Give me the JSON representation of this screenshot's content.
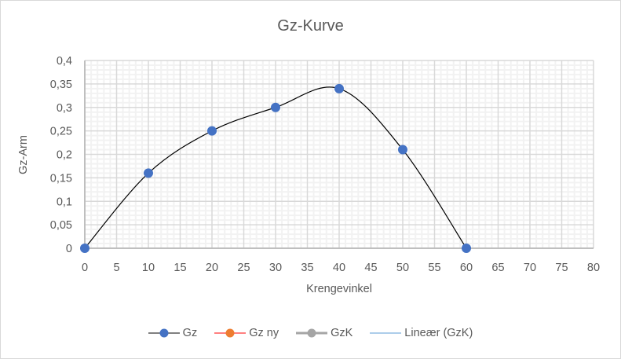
{
  "chart_data": {
    "type": "scatter",
    "title": "Gz-Kurve",
    "xlabel": "Krengevinkel",
    "ylabel": "Gz-Arm",
    "xlim": [
      0,
      80
    ],
    "ylim": [
      0,
      0.4
    ],
    "x_ticks": [
      "0",
      "5",
      "10",
      "15",
      "20",
      "25",
      "30",
      "35",
      "40",
      "45",
      "50",
      "55",
      "60",
      "65",
      "70",
      "75",
      "80"
    ],
    "y_ticks": [
      "0",
      "0,05",
      "0,1",
      "0,15",
      "0,2",
      "0,25",
      "0,3",
      "0,35",
      "0,4"
    ],
    "grid": {
      "major": true,
      "minor": true
    },
    "legend_position": "bottom",
    "series": [
      {
        "name": "Gz",
        "x": [
          0,
          10,
          20,
          30,
          40,
          50,
          60
        ],
        "y": [
          0,
          0.16,
          0.25,
          0.3,
          0.34,
          0.21,
          0
        ],
        "marker_color": "#4472c4",
        "line_color": "#000000",
        "smooth": true
      },
      {
        "name": "Gz ny",
        "x": [],
        "y": [],
        "marker_color": "#ed7d31",
        "line_color": "#ff0000"
      },
      {
        "name": "GzK",
        "x": [],
        "y": [],
        "marker_color": "#a5a5a5",
        "line_color": "#a5a5a5"
      },
      {
        "name": "Lineær (GzK)",
        "x": [],
        "y": [],
        "line_color": "#5b9bd5",
        "trendline": true
      }
    ]
  },
  "legend": {
    "items": [
      {
        "label": "Gz",
        "line": "#000000",
        "dot": "#4472c4",
        "thick": 1
      },
      {
        "label": "Gz ny",
        "line": "#ff0000",
        "dot": "#ed7d31",
        "thick": 1
      },
      {
        "label": "GzK",
        "line": "#a5a5a5",
        "dot": "#a5a5a5",
        "thick": 3
      },
      {
        "label": "Lineær (GzK)",
        "line": "#5b9bd5",
        "dot": null,
        "thick": 1
      }
    ]
  },
  "colors": {
    "text": "#595959",
    "major_grid": "#d9d9d9",
    "minor_grid": "#f2f2f2",
    "axis": "#bfbfbf"
  }
}
